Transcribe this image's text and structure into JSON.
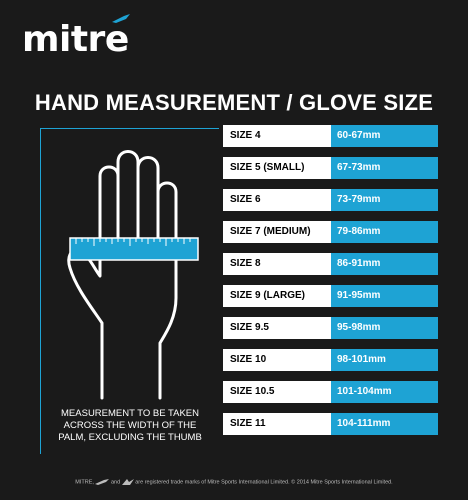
{
  "brand": {
    "logo_text": "mitre"
  },
  "title": "HAND MEASUREMENT / GLOVE SIZE",
  "instructions": [
    "MEASUREMENT TO BE TAKEN",
    "ACROSS THE WIDTH OF THE",
    "PALM, EXCLUDING THE THUMB"
  ],
  "sizes": [
    {
      "size": "SIZE 4",
      "range": "60-67mm"
    },
    {
      "size": "SIZE 5 (SMALL)",
      "range": "67-73mm"
    },
    {
      "size": "SIZE 6",
      "range": "73-79mm"
    },
    {
      "size": "SIZE 7 (MEDIUM)",
      "range": "79-86mm"
    },
    {
      "size": "SIZE 8",
      "range": "86-91mm"
    },
    {
      "size": "SIZE 9 (LARGE)",
      "range": "91-95mm"
    },
    {
      "size": "SIZE 9.5",
      "range": "95-98mm"
    },
    {
      "size": "SIZE 10",
      "range": "98-101mm"
    },
    {
      "size": "SIZE 10.5",
      "range": "101-104mm"
    },
    {
      "size": "SIZE 11",
      "range": "104-111mm"
    }
  ],
  "footer": {
    "prefix": "MITRE,",
    "middle": "and",
    "suffix": "are registered trade marks of Mitre Sports International Limited. © 2014 Mitre Sports International Limited."
  },
  "colors": {
    "accent": "#1ea3d4",
    "background": "#1a1a1a",
    "label_bg": "#ffffff"
  },
  "icons": [
    "mitre-logo-icon",
    "hand-outline-icon",
    "measuring-ruler-icon",
    "mitre-mark-icon",
    "mitre-arrow-icon"
  ]
}
